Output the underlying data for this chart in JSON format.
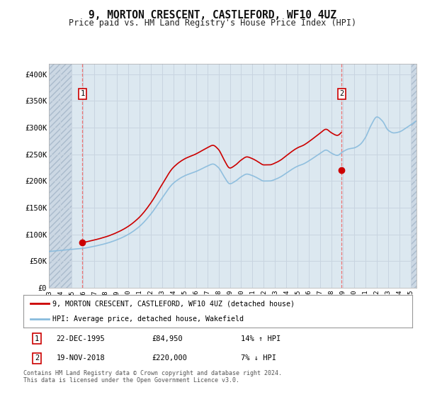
{
  "title": "9, MORTON CRESCENT, CASTLEFORD, WF10 4UZ",
  "subtitle": "Price paid vs. HM Land Registry's House Price Index (HPI)",
  "ylim": [
    0,
    420000
  ],
  "yticks": [
    0,
    50000,
    100000,
    150000,
    200000,
    250000,
    300000,
    350000,
    400000
  ],
  "ytick_labels": [
    "£0",
    "£50K",
    "£100K",
    "£150K",
    "£200K",
    "£250K",
    "£300K",
    "£350K",
    "£400K"
  ],
  "background_color": "#ffffff",
  "plot_bg_color": "#dce8f0",
  "grid_color": "#c8d4e0",
  "legend_line1": "9, MORTON CRESCENT, CASTLEFORD, WF10 4UZ (detached house)",
  "legend_line2": "HPI: Average price, detached house, Wakefield",
  "legend_line1_color": "#cc0000",
  "legend_line2_color": "#88bbdd",
  "marker1_date": "22-DEC-1995",
  "marker1_price": 84950,
  "marker1_hpi_pct": "14%",
  "marker1_hpi_dir": "↑",
  "marker2_date": "19-NOV-2018",
  "marker2_price": 220000,
  "marker2_hpi_pct": "7%",
  "marker2_hpi_dir": "↓",
  "footnote": "Contains HM Land Registry data © Crown copyright and database right 2024.\nThis data is licensed under the Open Government Licence v3.0.",
  "hpi_line_color": "#88bbdd",
  "price_line_color": "#cc0000",
  "vline_color": "#ee6666",
  "marker_color": "#cc0000",
  "sale1_x": 1995.97,
  "sale1_y": 84950,
  "sale2_x": 2018.89,
  "sale2_y": 220000,
  "xmin": 1993.0,
  "xmax": 2025.5,
  "hatch_left_end": 1995.0,
  "hatch_right_start": 2025.0,
  "xticks": [
    1993,
    1994,
    1995,
    1996,
    1997,
    1998,
    1999,
    2000,
    2001,
    2002,
    2003,
    2004,
    2005,
    2006,
    2007,
    2008,
    2009,
    2010,
    2011,
    2012,
    2013,
    2014,
    2015,
    2016,
    2017,
    2018,
    2019,
    2020,
    2021,
    2022,
    2023,
    2024,
    2025
  ]
}
